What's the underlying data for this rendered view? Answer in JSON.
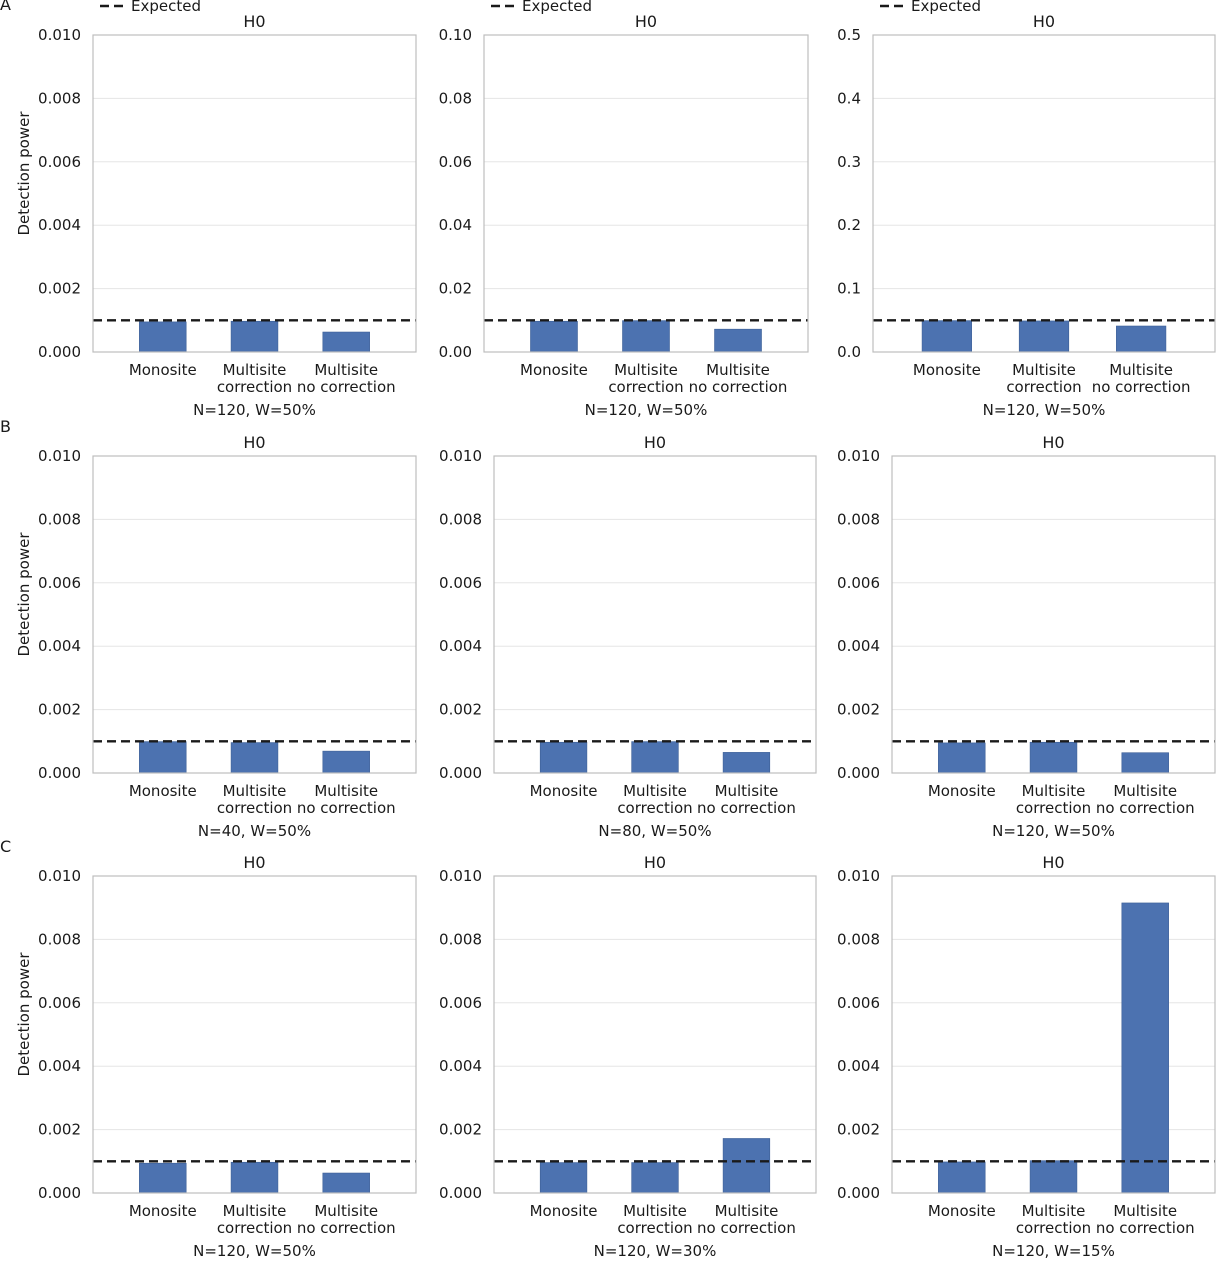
{
  "colors": {
    "bar": "#4c72b0",
    "expected_line": "#1a1a1a",
    "grid": "#e5e5e5",
    "frame": "#bdbdbd"
  },
  "legend": {
    "label": "Expected"
  },
  "ylabel": "Detection power",
  "category_lines": [
    [
      "Monosite"
    ],
    [
      "Multisite",
      "correction"
    ],
    [
      "Multisite",
      "no correction"
    ]
  ],
  "chart_data": [
    {
      "panel": "A",
      "type": "bar",
      "title": "H0",
      "xlabel": "N=120, W=50%",
      "ylabel": "Detection power",
      "categories": [
        "Monosite",
        "Multisite correction",
        "Multisite no correction"
      ],
      "values": [
        0.00095,
        0.00097,
        0.00063
      ],
      "expected": 0.001,
      "ylim": [
        0,
        0.01
      ],
      "yticks": [
        "0.000",
        "0.002",
        "0.004",
        "0.006",
        "0.008",
        "0.010"
      ],
      "legend": "Expected"
    },
    {
      "panel": "A",
      "type": "bar",
      "title": "H0",
      "xlabel": "N=120, W=50%",
      "categories": [
        "Monosite",
        "Multisite correction",
        "Multisite no correction"
      ],
      "values": [
        0.0097,
        0.0099,
        0.0072
      ],
      "expected": 0.01,
      "ylim": [
        0,
        0.1
      ],
      "yticks": [
        "0.00",
        "0.02",
        "0.04",
        "0.06",
        "0.08",
        "0.10"
      ],
      "legend": "Expected"
    },
    {
      "panel": "A",
      "type": "bar",
      "title": "H0",
      "xlabel": "N=120, W=50%",
      "categories": [
        "Monosite",
        "Multisite correction",
        "Multisite no correction"
      ],
      "values": [
        0.0495,
        0.049,
        0.041
      ],
      "expected": 0.05,
      "ylim": [
        0,
        0.5
      ],
      "yticks": [
        "0.0",
        "0.1",
        "0.2",
        "0.3",
        "0.4",
        "0.5"
      ],
      "legend": "Expected"
    },
    {
      "panel": "B",
      "type": "bar",
      "title": "H0",
      "xlabel": "N=40, W=50%",
      "ylabel": "Detection power",
      "categories": [
        "Monosite",
        "Multisite correction",
        "Multisite no correction"
      ],
      "values": [
        0.00099,
        0.00096,
        0.00069
      ],
      "expected": 0.001,
      "ylim": [
        0,
        0.01
      ],
      "yticks": [
        "0.000",
        "0.002",
        "0.004",
        "0.006",
        "0.008",
        "0.010"
      ]
    },
    {
      "panel": "B",
      "type": "bar",
      "title": "H0",
      "xlabel": "N=80, W=50%",
      "categories": [
        "Monosite",
        "Multisite correction",
        "Multisite no correction"
      ],
      "values": [
        0.00097,
        0.00099,
        0.00065
      ],
      "expected": 0.001,
      "ylim": [
        0,
        0.01
      ],
      "yticks": [
        "0.000",
        "0.002",
        "0.004",
        "0.006",
        "0.008",
        "0.010"
      ]
    },
    {
      "panel": "B",
      "type": "bar",
      "title": "H0",
      "xlabel": "N=120, W=50%",
      "categories": [
        "Monosite",
        "Multisite correction",
        "Multisite no correction"
      ],
      "values": [
        0.00095,
        0.00097,
        0.00064
      ],
      "expected": 0.001,
      "ylim": [
        0,
        0.01
      ],
      "yticks": [
        "0.000",
        "0.002",
        "0.004",
        "0.006",
        "0.008",
        "0.010"
      ]
    },
    {
      "panel": "C",
      "type": "bar",
      "title": "H0",
      "xlabel": "N=120, W=50%",
      "ylabel": "Detection power",
      "categories": [
        "Monosite",
        "Multisite correction",
        "Multisite no correction"
      ],
      "values": [
        0.00094,
        0.00097,
        0.00063
      ],
      "expected": 0.001,
      "ylim": [
        0,
        0.01
      ],
      "yticks": [
        "0.000",
        "0.002",
        "0.004",
        "0.006",
        "0.008",
        "0.010"
      ]
    },
    {
      "panel": "C",
      "type": "bar",
      "title": "H0",
      "xlabel": "N=120, W=30%",
      "categories": [
        "Monosite",
        "Multisite correction",
        "Multisite no correction"
      ],
      "values": [
        0.00096,
        0.00096,
        0.00172
      ],
      "expected": 0.001,
      "ylim": [
        0,
        0.01
      ],
      "yticks": [
        "0.000",
        "0.002",
        "0.004",
        "0.006",
        "0.008",
        "0.010"
      ]
    },
    {
      "panel": "C",
      "type": "bar",
      "title": "H0",
      "xlabel": "N=120, W=15%",
      "categories": [
        "Monosite",
        "Multisite correction",
        "Multisite no correction"
      ],
      "values": [
        0.00098,
        0.00102,
        0.00915
      ],
      "expected": 0.001,
      "ylim": [
        0,
        0.01
      ],
      "yticks": [
        "0.000",
        "0.002",
        "0.004",
        "0.006",
        "0.008",
        "0.010"
      ]
    }
  ]
}
